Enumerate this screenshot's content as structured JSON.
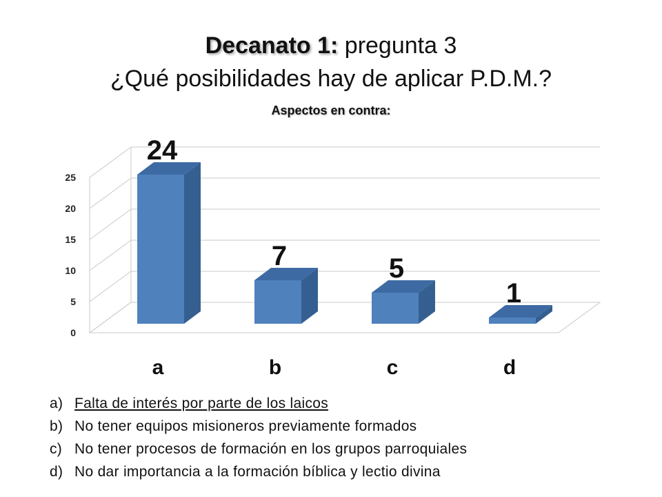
{
  "slide": {
    "title_bold": "Decanato 1:",
    "title_rest": " pregunta 3",
    "title_line2": "¿Qué posibilidades hay de aplicar P.D.M.?"
  },
  "chart_data": {
    "type": "bar",
    "title": "Aspectos en contra:",
    "categories": [
      "a",
      "b",
      "c",
      "d"
    ],
    "values": [
      24,
      7,
      5,
      1
    ],
    "ylim": [
      0,
      25
    ],
    "yticks": [
      "0",
      "5",
      "10",
      "15",
      "20",
      "25"
    ],
    "grid": true,
    "bar_color": "#4f81bd"
  },
  "legend": [
    {
      "key": "a)",
      "text": "Falta de interés por parte de los laicos"
    },
    {
      "key": "b)",
      "text": "No tener equipos misioneros previamente formados"
    },
    {
      "key": "c)",
      "text": "No tener procesos de formación en los grupos parroquiales"
    },
    {
      "key": "d)",
      "text": "No dar importancia a la formación bíblica y lectio divina"
    }
  ]
}
